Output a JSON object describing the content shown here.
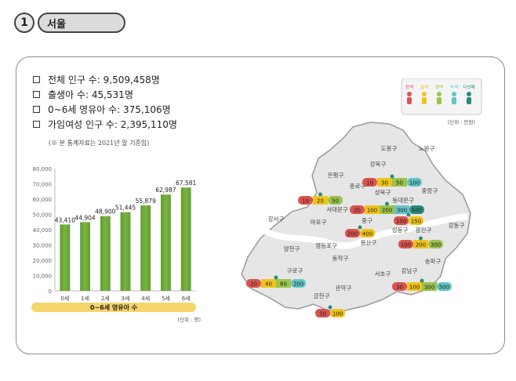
{
  "header": {
    "number": "1",
    "title": "서울"
  },
  "stats": [
    "전체 인구 수: 9,509,458명",
    "출생아 수: 45,531명",
    "0~6세 영유아 수: 375,106명",
    "가임여성 인구 수: 2,395,110명"
  ],
  "note": "(※ 본 통계자료는 2021년 말 기준임)",
  "chart_data": {
    "type": "bar",
    "categories": [
      "0세",
      "1세",
      "2세",
      "3세",
      "4세",
      "5세",
      "6세"
    ],
    "values": [
      43410,
      44904,
      48900,
      51445,
      55879,
      62987,
      67581
    ],
    "value_labels": [
      "43,410",
      "44,904",
      "48,900",
      "51,445",
      "55,879",
      "62,987",
      "67,581"
    ],
    "ylim": [
      0,
      80000
    ],
    "yticks": [
      "0",
      "10,000",
      "20,000",
      "30,000",
      "40,000",
      "50,000",
      "60,000",
      "70,000",
      "80,000"
    ],
    "xlabel": "0~6세 영유아 수",
    "unit": "(단위 : 명)",
    "bar_color": "#7cb342",
    "label_bar_color": "#f5d56a"
  },
  "map": {
    "legend": {
      "levels": [
        "청색",
        "들색",
        "생색",
        "녹색",
        "다섯째"
      ],
      "colors": [
        "#d9534f",
        "#f0c419",
        "#9bc34a",
        "#62c5c7",
        "#2e8b7a"
      ],
      "unit": "(단위 : 만원)"
    },
    "districts": [
      "도봉구",
      "노원구",
      "강북구",
      "은평구",
      "성북구",
      "종로구",
      "중랑구",
      "동대문구",
      "서대문구",
      "마포구",
      "중구",
      "성동구",
      "광진구",
      "강동구",
      "강서구",
      "용산구",
      "양천구",
      "영등포구",
      "동작구",
      "송파구",
      "구로구",
      "서초구",
      "강남구",
      "관악구",
      "금천구"
    ],
    "rate_bars": [
      {
        "labels": [
          "10",
          "30",
          "50",
          "100"
        ]
      },
      {
        "labels": [
          "10",
          "20",
          "50"
        ]
      },
      {
        "labels": [
          "20",
          "100",
          "200",
          "300",
          "500"
        ]
      },
      {
        "labels": [
          "100",
          "150"
        ]
      },
      {
        "labels": [
          "200",
          "400"
        ]
      },
      {
        "labels": [
          "100",
          "200",
          "300"
        ]
      },
      {
        "labels": [
          "20",
          "40",
          "60",
          "200"
        ]
      },
      {
        "labels": [
          "30",
          "100",
          "300",
          "500"
        ]
      },
      {
        "labels": [
          "50",
          "100"
        ]
      }
    ]
  }
}
